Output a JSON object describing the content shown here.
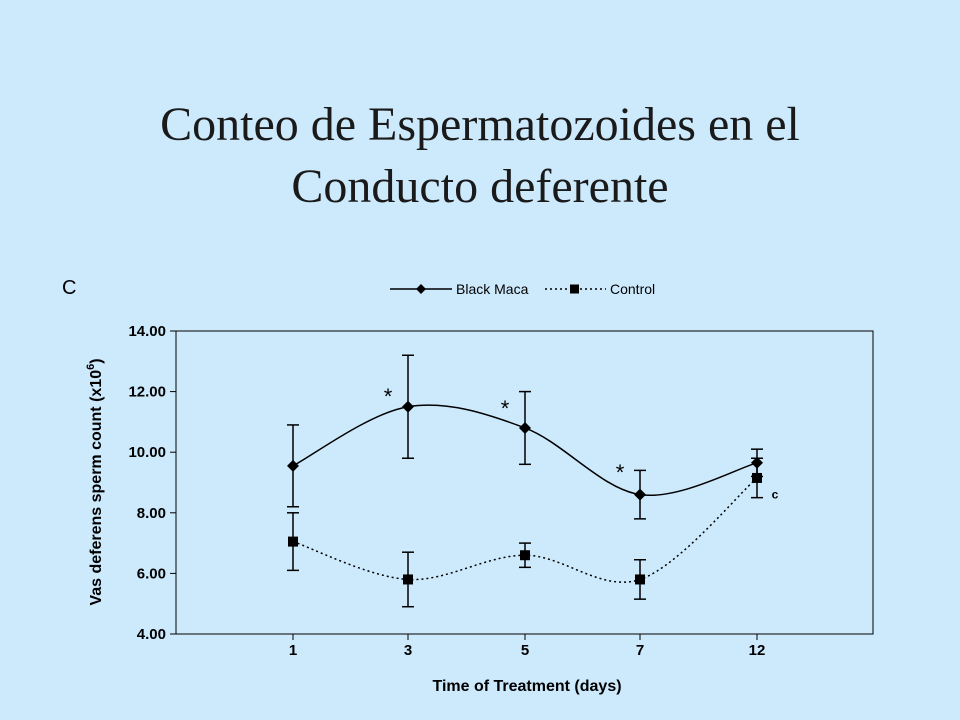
{
  "slide": {
    "title_line1": "Conteo de Espermatozoides en el",
    "title_line2": "Conducto deferente",
    "background": "#cdeafd"
  },
  "chart_data": {
    "type": "line",
    "panel_label": "C",
    "xlabel": "Time of Treatment (days)",
    "ylabel_main": "Vas deferens sperm count (x10",
    "ylabel_sup": "6",
    "ylabel_end": ")",
    "categories": [
      "1",
      "3",
      "5",
      "7",
      "12"
    ],
    "ylim": [
      4,
      14
    ],
    "yticks": [
      "4.00",
      "6.00",
      "8.00",
      "10.00",
      "12.00",
      "14.00"
    ],
    "legend_position": "top",
    "grid": false,
    "series": [
      {
        "name": "Black Maca",
        "marker": "diamond",
        "line_style": "solid",
        "values": [
          9.55,
          11.5,
          10.8,
          8.6,
          9.65
        ],
        "error_bars": [
          1.35,
          1.7,
          1.2,
          0.8,
          0.45
        ]
      },
      {
        "name": "Control",
        "marker": "square",
        "line_style": "dotted",
        "values": [
          7.05,
          5.8,
          6.6,
          5.8,
          9.15
        ],
        "error_bars": [
          0.95,
          0.9,
          0.4,
          0.65,
          0.65
        ]
      }
    ],
    "annotations": [
      {
        "text": "*",
        "category": "3",
        "y": 12.05
      },
      {
        "text": "*",
        "category": "5",
        "y": 11.65
      },
      {
        "text": "*",
        "category": "7",
        "y": 9.55
      },
      {
        "text": "c",
        "category": "12",
        "y": 8.6
      }
    ]
  }
}
